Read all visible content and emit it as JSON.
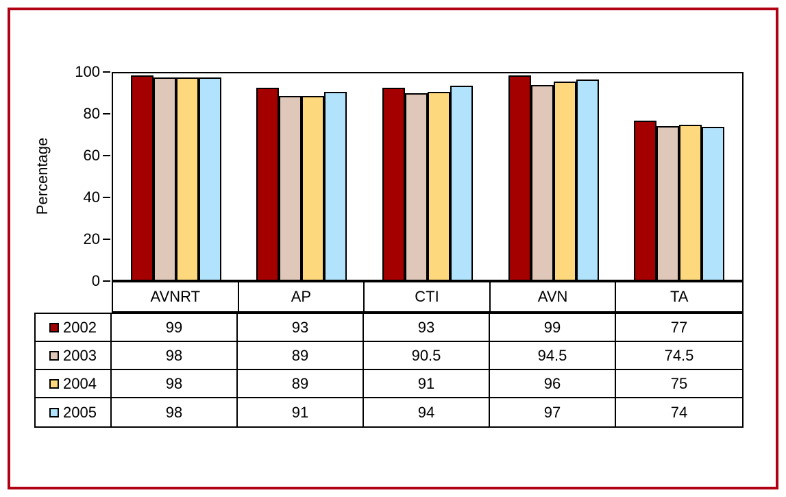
{
  "figure": {
    "background": "#FFFFFF",
    "frame_color": "#B00212",
    "axis_color": "#000000"
  },
  "chart_data": {
    "type": "bar",
    "title": "",
    "xlabel": "",
    "ylabel": "Percentage",
    "ylim": [
      0,
      100
    ],
    "yticks": [
      0,
      20,
      40,
      60,
      80,
      100
    ],
    "grid": false,
    "legend_position": "table-rows-left",
    "categories": [
      "AVNRT",
      "AP",
      "CTI",
      "AVN",
      "TA"
    ],
    "series": [
      {
        "name": "2002",
        "color": "#A40000",
        "values": [
          99,
          93,
          93,
          99,
          77
        ]
      },
      {
        "name": "2003",
        "color": "#DFC8B9",
        "values": [
          98,
          89,
          90.5,
          94.5,
          74.5
        ]
      },
      {
        "name": "2004",
        "color": "#FDD87C",
        "values": [
          98,
          89,
          91,
          96,
          75
        ]
      },
      {
        "name": "2005",
        "color": "#B2E3FD",
        "values": [
          98,
          91,
          94,
          97,
          74
        ]
      }
    ]
  }
}
